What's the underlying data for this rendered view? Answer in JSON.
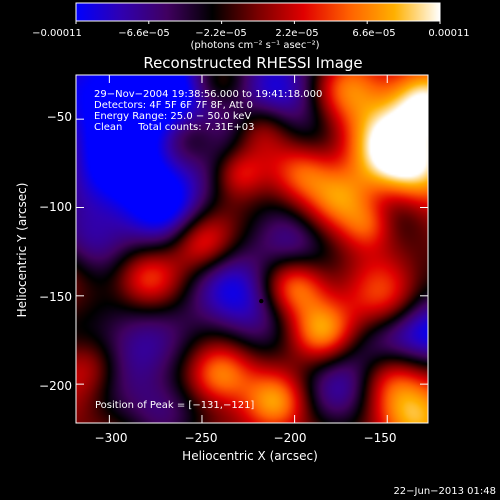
{
  "chart_data": {
    "type": "heatmap",
    "title": "Reconstructed RHESSI Image",
    "xlabel": "Heliocentric X (arcsec)",
    "ylabel": "Heliocentric Y (arcsec)",
    "xlim": [
      -318,
      -128
    ],
    "ylim": [
      -222,
      -25
    ],
    "x_ticks": [
      -300,
      -250,
      -200,
      -150
    ],
    "x_tick_labels": [
      "−300",
      "−250",
      "−200",
      "−150"
    ],
    "y_ticks": [
      -50,
      -100,
      -150,
      -200
    ],
    "y_tick_labels": [
      "−50",
      "−100",
      "−150",
      "−200"
    ],
    "colorbar": {
      "range": [
        -0.00011,
        0.00011
      ],
      "ticks": [
        -0.00011,
        -6.6e-05,
        -2.2e-05,
        2.2e-05,
        6.6e-05,
        0.00011
      ],
      "tick_labels": [
        "−0.00011",
        "−6.6e−05",
        "−2.2e−05",
        "2.2e−05",
        "6.6e−05",
        "0.00011"
      ],
      "unit_label": "(photons cm⁻² s⁻¹ asec⁻²)",
      "colors": [
        "#0000ff",
        "#3000b0",
        "#400060",
        "#000000",
        "#7a0000",
        "#e00000",
        "#ff6000",
        "#ffb000",
        "#ffffff"
      ]
    },
    "info_lines": [
      "29−Nov−2004 19:38:56.000 to 19:41:18.000",
      "Detectors: 4F 5F 6F 7F 8F, Att 0",
      "Energy Range: 25.0 − 50.0 keV",
      "Clean     Total counts: 7.31E+03"
    ],
    "peak_label": "Position of Peak = [−131,−121]",
    "center_marker": [
      -218,
      -153
    ],
    "components": [
      [
        -300,
        -30,
        -1,
        30
      ],
      [
        -255,
        -40,
        -0.9,
        28
      ],
      [
        -200,
        -35,
        -0.8,
        25
      ],
      [
        -172,
        -32,
        0.9,
        14
      ],
      [
        -150,
        -60,
        1,
        18
      ],
      [
        -135,
        -80,
        1,
        16
      ],
      [
        -128,
        -40,
        0.8,
        14
      ],
      [
        -240,
        -28,
        0.7,
        12
      ],
      [
        -218,
        -55,
        0.7,
        12
      ],
      [
        -230,
        -80,
        0.6,
        10
      ],
      [
        -195,
        -80,
        0.7,
        12
      ],
      [
        -175,
        -95,
        0.6,
        12
      ],
      [
        -160,
        -110,
        0.6,
        10
      ],
      [
        -140,
        -100,
        -0.5,
        14
      ],
      [
        -300,
        -80,
        -0.8,
        22
      ],
      [
        -270,
        -100,
        -0.9,
        20
      ],
      [
        -250,
        -120,
        0.8,
        12
      ],
      [
        -280,
        -140,
        0.6,
        12
      ],
      [
        -230,
        -150,
        -1,
        20
      ],
      [
        -200,
        -145,
        0.9,
        12
      ],
      [
        -185,
        -170,
        0.8,
        12
      ],
      [
        -150,
        -155,
        0.7,
        14
      ],
      [
        -140,
        -170,
        -0.8,
        16
      ],
      [
        -120,
        -170,
        -0.8,
        14
      ],
      [
        -170,
        -200,
        -0.8,
        18
      ],
      [
        -240,
        -195,
        0.8,
        12
      ],
      [
        -210,
        -210,
        0.7,
        12
      ],
      [
        -290,
        -180,
        -0.8,
        20
      ],
      [
        -135,
        -215,
        1,
        16
      ],
      [
        -150,
        -195,
        0.5,
        12
      ],
      [
        -310,
        -190,
        0.5,
        12
      ],
      [
        -270,
        -215,
        -0.6,
        14
      ],
      [
        -200,
        -120,
        -0.6,
        14
      ],
      [
        -255,
        -60,
        0.6,
        12
      ],
      [
        -310,
        -120,
        -0.5,
        14
      ]
    ]
  },
  "footer": {
    "date": "22−Jun−2013 01:48"
  }
}
